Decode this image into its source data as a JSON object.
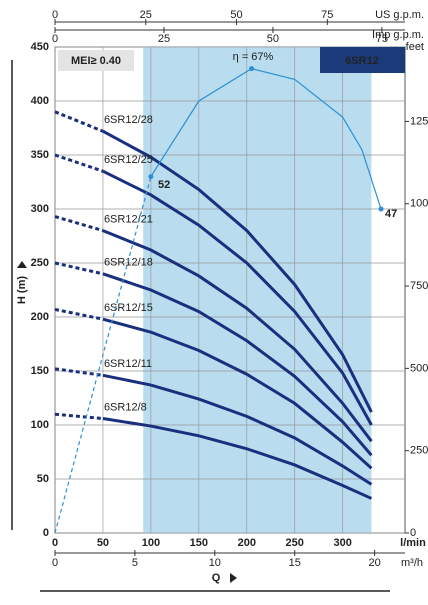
{
  "chart_data": {
    "type": "line",
    "title": "6SR12",
    "annotations": [
      "MEI≥ 0.40",
      "η = 67%",
      "52",
      "47"
    ],
    "xlabel": "Q",
    "xunit": "l/min",
    "ylabel": "H (m)",
    "xlim": [
      0,
      365
    ],
    "xticks": [
      0,
      50,
      100,
      150,
      200,
      250,
      300
    ],
    "ylim": [
      0,
      450
    ],
    "yticks": [
      0,
      50,
      100,
      150,
      200,
      250,
      300,
      350,
      400,
      450
    ],
    "grid": true,
    "shaded_range": [
      92,
      330
    ],
    "y2label": "feet",
    "y2lim": [
      0,
      1476
    ],
    "y2ticks": [
      0,
      250,
      500,
      750,
      1000,
      1250
    ],
    "top_axes": [
      {
        "label": "US g.p.m.",
        "lim": [
          0,
          96.4
        ],
        "ticks": [
          0,
          25,
          50,
          75
        ]
      },
      {
        "label": "Imp g.p.m.",
        "lim": [
          0,
          80.3
        ],
        "ticks": [
          0,
          25,
          50,
          75
        ]
      }
    ],
    "bottom_axis2": {
      "label": "m³/h",
      "lim": [
        0,
        21.9
      ],
      "ticks": [
        0,
        5,
        10,
        15,
        20
      ]
    },
    "x": [
      0,
      50,
      100,
      150,
      200,
      250,
      300,
      330
    ],
    "series": [
      {
        "name": "6SR12/28",
        "color": "#1b2f7f",
        "values": [
          390,
          372,
          348,
          318,
          280,
          230,
          165,
          112
        ]
      },
      {
        "name": "6SR12/25",
        "color": "#1b2f7f",
        "values": [
          350,
          335,
          313,
          285,
          250,
          205,
          148,
          100
        ]
      },
      {
        "name": "6SR12/21",
        "color": "#1b2f7f",
        "values": [
          293,
          280,
          262,
          238,
          208,
          170,
          120,
          85
        ]
      },
      {
        "name": "6SR12/18",
        "color": "#1b2f7f",
        "values": [
          250,
          240,
          225,
          205,
          178,
          145,
          103,
          72
        ]
      },
      {
        "name": "6SR12/15",
        "color": "#1b2f7f",
        "values": [
          207,
          198,
          186,
          169,
          147,
          120,
          84,
          60
        ]
      },
      {
        "name": "6SR12/11",
        "color": "#1b2f7f",
        "values": [
          152,
          146,
          137,
          124,
          108,
          88,
          62,
          45
        ]
      },
      {
        "name": "6SR12/8",
        "color": "#1b2f7f",
        "values": [
          110,
          106,
          99,
          90,
          78,
          63,
          44,
          32
        ]
      }
    ],
    "efficiency": {
      "color": "#2b8fd6",
      "x": [
        0,
        100,
        150,
        205,
        250,
        300,
        320,
        340
      ],
      "values": [
        0,
        330,
        400,
        430,
        420,
        385,
        355,
        300
      ]
    }
  }
}
